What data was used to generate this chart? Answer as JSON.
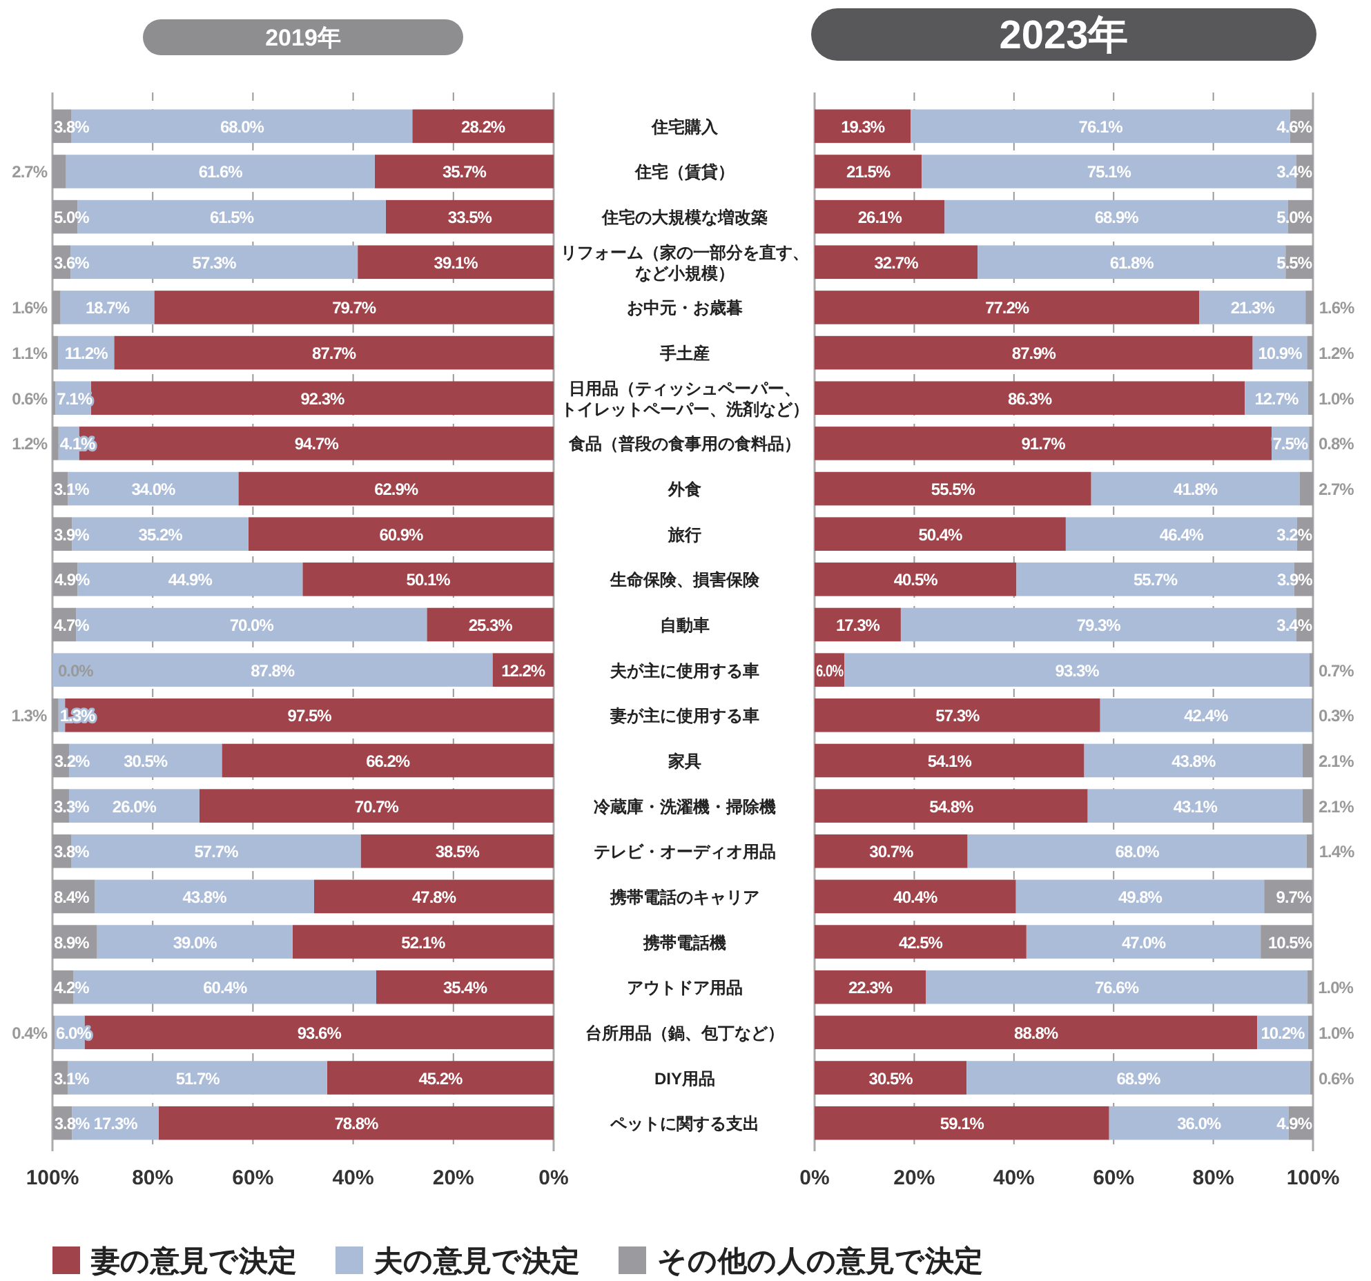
{
  "chart_data": [
    {
      "type": "bar",
      "orientation": "horizontal",
      "stacked": true,
      "title": "2019年",
      "grid": "x",
      "legend": "bottom",
      "categories": [
        "住宅購入",
        "住宅（賃貸）",
        "住宅の大規模な増改築",
        "リフォーム（家の一部分を直す、など小規模）",
        "お中元・お歳暮",
        "手土産",
        "日用品（ティッシュペーパー、トイレットペーパー、洗剤など）",
        "食品（普段の食事用の食料品）",
        "外食",
        "旅行",
        "生命保険、損害保険",
        "自動車",
        "夫が主に使用する車",
        "妻が主に使用する車",
        "家具",
        "冷蔵庫・洗濯機・掃除機",
        "テレビ・オーディオ用品",
        "携帯電話のキャリア",
        "携帯電話機",
        "アウトドア用品",
        "台所用品（鍋、包丁など）",
        "DIY用品",
        "ペットに関する支出"
      ],
      "xlim": [
        100,
        0
      ],
      "xticks": [
        {
          "value": 100,
          "label": "100%"
        },
        {
          "value": 80,
          "label": "80%"
        },
        {
          "value": 60,
          "label": "60%"
        },
        {
          "value": 40,
          "label": "40%"
        },
        {
          "value": 20,
          "label": "20%"
        },
        {
          "value": 0,
          "label": "0%"
        }
      ],
      "series": [
        {
          "name": "妻の意見で決定",
          "color": "#a0434a",
          "values": [
            28.2,
            35.7,
            33.5,
            39.1,
            79.7,
            87.7,
            92.3,
            94.7,
            62.9,
            60.9,
            50.1,
            25.3,
            12.2,
            97.5,
            66.2,
            70.7,
            38.5,
            47.8,
            52.1,
            35.4,
            93.6,
            45.2,
            78.8
          ],
          "value_labels": [
            "28.2%",
            "35.7%",
            "33.5%",
            "39.1%",
            "79.7%",
            "87.7%",
            "92.3%",
            "94.7%",
            "62.9%",
            "60.9%",
            "50.1%",
            "25.3%",
            "12.2%",
            "97.5%",
            "66.2%",
            "70.7%",
            "38.5%",
            "47.8%",
            "52.1%",
            "35.4%",
            "93.6%",
            "45.2%",
            "78.8%"
          ]
        },
        {
          "name": "夫の意見で決定",
          "color": "#abbcd9",
          "values": [
            68.0,
            61.6,
            61.5,
            57.3,
            18.7,
            11.2,
            7.1,
            4.1,
            34.0,
            35.2,
            44.9,
            70.0,
            87.8,
            1.3,
            30.5,
            26.0,
            57.7,
            43.8,
            39.0,
            60.4,
            6.0,
            51.7,
            17.3
          ],
          "value_labels": [
            "68.0%",
            "61.6%",
            "61.5%",
            "57.3%",
            "18.7%",
            "11.2%",
            "7.1%",
            "4.1%",
            "34.0%",
            "35.2%",
            "44.9%",
            "70.0%",
            "87.8%",
            "1.3%",
            "30.5%",
            "26.0%",
            "57.7%",
            "43.8%",
            "39.0%",
            "60.4%",
            "6.0%",
            "51.7%",
            "17.3%"
          ]
        },
        {
          "name": "その他の人の意見で決定",
          "color": "#9b9b9f",
          "values": [
            3.8,
            2.7,
            5.0,
            3.6,
            1.6,
            1.1,
            0.6,
            1.2,
            3.1,
            3.9,
            4.9,
            4.7,
            0.0,
            1.3,
            3.2,
            3.3,
            3.8,
            8.4,
            8.9,
            4.2,
            0.4,
            3.1,
            3.8
          ],
          "value_labels": [
            "3.8%",
            "2.7%",
            "5.0%",
            "3.6%",
            "1.6%",
            "1.1%",
            "0.6%",
            "1.2%",
            "3.1%",
            "3.9%",
            "4.9%",
            "4.7%",
            "0.0%",
            "1.3%",
            "3.2%",
            "3.3%",
            "3.8%",
            "8.4%",
            "8.9%",
            "4.2%",
            "0.4%",
            "3.1%",
            "3.8%"
          ]
        }
      ]
    },
    {
      "type": "bar",
      "orientation": "horizontal",
      "stacked": true,
      "title": "2023年",
      "grid": "x",
      "tick_labels": "x",
      "categories": [
        null,
        null,
        null,
        null,
        null,
        null,
        null,
        null,
        null,
        null,
        null,
        null,
        null,
        null,
        null,
        null,
        null,
        null,
        null,
        null,
        null,
        null,
        null
      ],
      "xlim": [
        0,
        100
      ],
      "xticks": [
        {
          "value": 0,
          "label": "0%"
        },
        {
          "value": 20,
          "label": "20%"
        },
        {
          "value": 40,
          "label": "40%"
        },
        {
          "value": 60,
          "label": "60%"
        },
        {
          "value": 80,
          "label": "80%"
        },
        {
          "value": 100,
          "label": "100%"
        }
      ],
      "series": [
        {
          "color": "#a0434a",
          "values": [
            19.3,
            21.5,
            26.1,
            32.7,
            77.2,
            87.9,
            86.3,
            91.7,
            55.5,
            50.4,
            40.5,
            17.3,
            6.0,
            57.3,
            54.1,
            54.8,
            30.7,
            40.4,
            42.5,
            22.3,
            88.8,
            30.5,
            59.1
          ],
          "value_labels": [
            "19.3%",
            "21.5%",
            "26.1%",
            "32.7%",
            "77.2%",
            "87.9%",
            "86.3%",
            "91.7%",
            "55.5%",
            "50.4%",
            "40.5%",
            "17.3%",
            "6.0%",
            "57.3%",
            "54.1%",
            "54.8%",
            "30.7%",
            "40.4%",
            "42.5%",
            "22.3%",
            "88.8%",
            "30.5%",
            "59.1%"
          ]
        },
        {
          "color": "#abbcd9",
          "values": [
            76.1,
            75.1,
            68.9,
            61.8,
            21.3,
            10.9,
            12.7,
            7.5,
            41.8,
            46.4,
            55.7,
            79.3,
            93.3,
            42.4,
            43.8,
            43.1,
            68.0,
            49.8,
            47.0,
            76.6,
            10.2,
            68.9,
            36.0
          ],
          "value_labels": [
            "76.1%",
            "75.1%",
            "68.9%",
            "61.8%",
            "21.3%",
            "10.9%",
            "12.7%",
            "7.5%",
            "41.8%",
            "46.4%",
            "55.7%",
            "79.3%",
            "93.3%",
            "42.4%",
            "43.8%",
            "43.1%",
            "68.0%",
            "49.8%",
            "47.0%",
            "76.6%",
            "10.2%",
            "68.9%",
            "36.0%"
          ]
        },
        {
          "color": "#9b9b9f",
          "values": [
            4.6,
            3.4,
            5.0,
            5.5,
            1.6,
            1.2,
            1.0,
            0.8,
            2.7,
            3.2,
            3.9,
            3.4,
            0.7,
            0.3,
            2.1,
            2.1,
            1.4,
            9.7,
            10.5,
            1.0,
            1.0,
            0.6,
            4.9
          ],
          "value_labels": [
            "4.6%",
            "3.4%",
            "5.0%",
            "5.5%",
            "1.6%",
            "1.2%",
            "1.0%",
            "0.8%",
            "2.7%",
            "3.2%",
            "3.9%",
            "3.4%",
            "0.7%",
            "0.3%",
            "2.1%",
            "2.1%",
            "1.4%",
            "9.7%",
            "10.5%",
            "1.0%",
            "1.0%",
            "0.6%",
            "4.9%"
          ]
        }
      ]
    }
  ]
}
